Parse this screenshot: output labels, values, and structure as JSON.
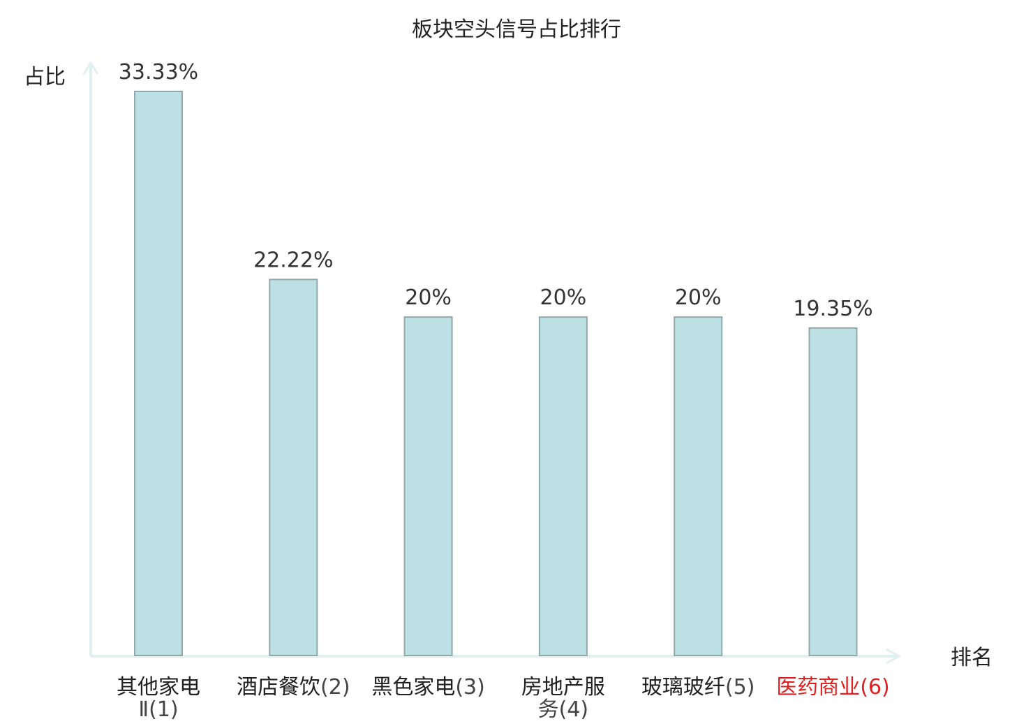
{
  "chart_data": {
    "type": "bar",
    "title": "板块空头信号占比排行",
    "ylabel": "占比",
    "xlabel": "排名",
    "categories": [
      {
        "name": "其他家电",
        "rank": "Ⅱ(1)"
      },
      {
        "name": "酒店餐饮",
        "rank": "(2)"
      },
      {
        "name": "黑色家电",
        "rank": "(3)"
      },
      {
        "name": "房地产服",
        "rank": "务(4)"
      },
      {
        "name": "玻璃玻纤",
        "rank": "(5)"
      },
      {
        "name": "医药商业",
        "rank": "(6)"
      }
    ],
    "values": [
      33.33,
      22.22,
      20,
      20,
      20,
      19.35
    ],
    "value_labels": [
      "33.33%",
      "22.22%",
      "20%",
      "20%",
      "20%",
      "19.35%"
    ],
    "highlight_index": 5,
    "ylim": [
      0,
      35
    ],
    "grid": false,
    "colors": {
      "bar_fill": "#bce0e3",
      "bar_stroke": "#8fa9ab",
      "axis": "#dff0ee",
      "highlight_text": "#e02020",
      "text": "#222222"
    }
  }
}
